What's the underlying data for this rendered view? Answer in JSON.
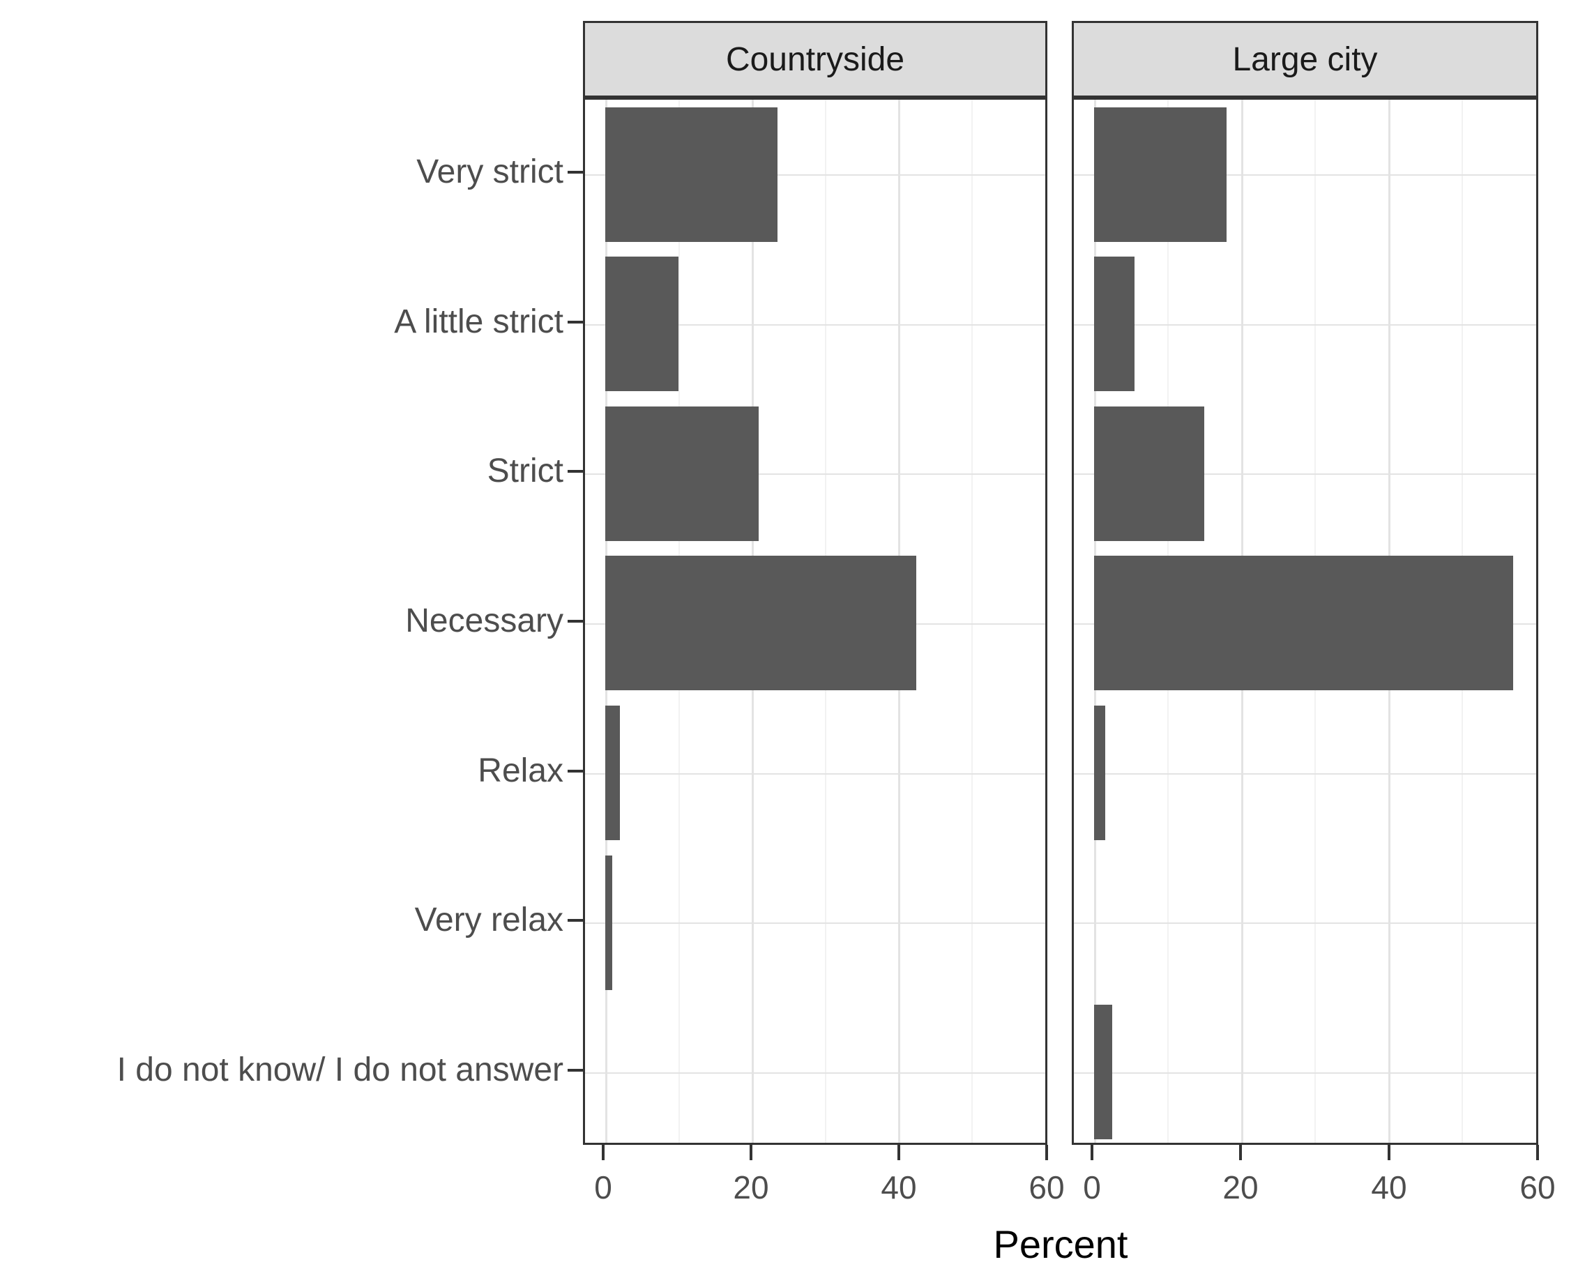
{
  "chart_data": {
    "type": "bar",
    "orientation": "horizontal",
    "title": "",
    "xlabel": "Percent",
    "categories": [
      "Very strict",
      "A little strict",
      "Strict",
      "Necessary",
      "Relax",
      "Very relax",
      "I do not know/ I do not answer"
    ],
    "facets": [
      {
        "label": "Countryside",
        "values": [
          23.5,
          10,
          21,
          42.5,
          2,
          1,
          0
        ]
      },
      {
        "label": "Large city",
        "values": [
          18,
          5.5,
          15,
          57,
          1.5,
          0,
          2.5
        ]
      }
    ],
    "x_ticks": [
      0,
      20,
      40,
      60
    ],
    "x_minor_ticks": [
      10,
      30,
      50
    ],
    "xlim": [
      0,
      60
    ],
    "grid": "on",
    "legend": "none"
  },
  "colors": {
    "bar_fill": "#595959",
    "strip_bg": "#dcdcdc",
    "panel_bg": "#ffffff",
    "panel_border": "#333333",
    "grid_major": "#e3e3e3",
    "grid_minor": "#f2f2f2",
    "axis_text": "#4d4d4d",
    "axis_title": "#000000",
    "tick_mark": "#333333"
  }
}
